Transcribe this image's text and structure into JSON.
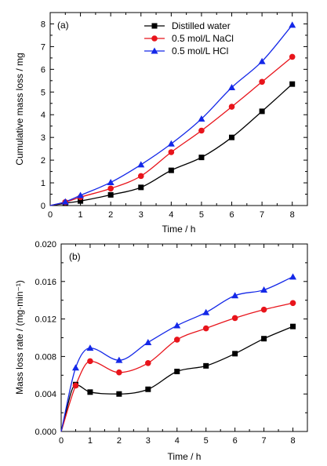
{
  "chart_data": [
    {
      "type": "line",
      "panel_label": "(a)",
      "xlabel": "Time / h",
      "ylabel": "Cumulative mass loss / mg",
      "xlim": [
        0,
        8.5
      ],
      "ylim": [
        0,
        8.5
      ],
      "xticks": [
        0,
        1,
        2,
        3,
        4,
        5,
        6,
        7,
        8
      ],
      "xtick_labels": [
        "0",
        "1",
        "2",
        "3",
        "4",
        "5",
        "6",
        "7",
        "8"
      ],
      "yticks": [
        0,
        1,
        2,
        3,
        4,
        5,
        6,
        7,
        8
      ],
      "ytick_labels": [
        "0",
        "1",
        "2",
        "3",
        "4",
        "5",
        "6",
        "7",
        "8"
      ],
      "grid": false,
      "legend": "top-center",
      "series": [
        {
          "name": "Distilled water",
          "marker": "square",
          "color": "#000000",
          "x": [
            0,
            0.5,
            1,
            2,
            3,
            4,
            5,
            6,
            7,
            8
          ],
          "y": [
            0,
            0.1,
            0.2,
            0.47,
            0.8,
            1.55,
            2.12,
            3.0,
            4.15,
            5.35
          ]
        },
        {
          "name": "0.5 mol/L NaCl",
          "marker": "circle",
          "color": "#e8141b",
          "x": [
            0,
            0.5,
            1,
            2,
            3,
            4,
            5,
            6,
            7,
            8
          ],
          "y": [
            0,
            0.15,
            0.37,
            0.75,
            1.3,
            2.35,
            3.3,
            4.35,
            5.45,
            6.55
          ]
        },
        {
          "name": "0.5 mol/L HCl",
          "marker": "triangle",
          "color": "#1428e8",
          "x": [
            0,
            0.5,
            1,
            2,
            3,
            4,
            5,
            6,
            7,
            8
          ],
          "y": [
            0,
            0.17,
            0.45,
            1.02,
            1.8,
            2.72,
            3.82,
            5.2,
            6.35,
            7.95
          ]
        }
      ]
    },
    {
      "type": "line",
      "panel_label": "(b)",
      "xlabel": "Time / h",
      "ylabel": "Mass loss rate / (mg·min⁻¹)",
      "xlim": [
        0,
        8.5
      ],
      "ylim": [
        0,
        0.02
      ],
      "xticks": [
        0,
        1,
        2,
        3,
        4,
        5,
        6,
        7,
        8
      ],
      "xtick_labels": [
        "0",
        "1",
        "2",
        "3",
        "4",
        "5",
        "6",
        "7",
        "8"
      ],
      "yticks": [
        0,
        0.004,
        0.008,
        0.012,
        0.016,
        0.02
      ],
      "ytick_labels": [
        "0.000",
        "0.004",
        "0.008",
        "0.012",
        "0.016",
        "0.020"
      ],
      "grid": false,
      "series": [
        {
          "name": "Distilled water",
          "marker": "square",
          "color": "#000000",
          "x": [
            0,
            0.5,
            1,
            2,
            3,
            4,
            5,
            6,
            7,
            8
          ],
          "y": [
            0,
            0.005,
            0.0042,
            0.004,
            0.0045,
            0.0064,
            0.007,
            0.0083,
            0.0099,
            0.0112
          ]
        },
        {
          "name": "0.5 mol/L NaCl",
          "marker": "circle",
          "color": "#e8141b",
          "x": [
            0,
            0.5,
            1,
            2,
            3,
            4,
            5,
            6,
            7,
            8
          ],
          "y": [
            0,
            0.0049,
            0.0075,
            0.0063,
            0.0073,
            0.0098,
            0.011,
            0.0121,
            0.013,
            0.0137
          ]
        },
        {
          "name": "0.5 mol/L HCl",
          "marker": "triangle",
          "color": "#1428e8",
          "x": [
            0,
            0.5,
            1,
            2,
            3,
            4,
            5,
            6,
            7,
            8
          ],
          "y": [
            0,
            0.0068,
            0.0089,
            0.0076,
            0.0095,
            0.0113,
            0.0127,
            0.0145,
            0.0151,
            0.0165
          ]
        }
      ]
    }
  ]
}
